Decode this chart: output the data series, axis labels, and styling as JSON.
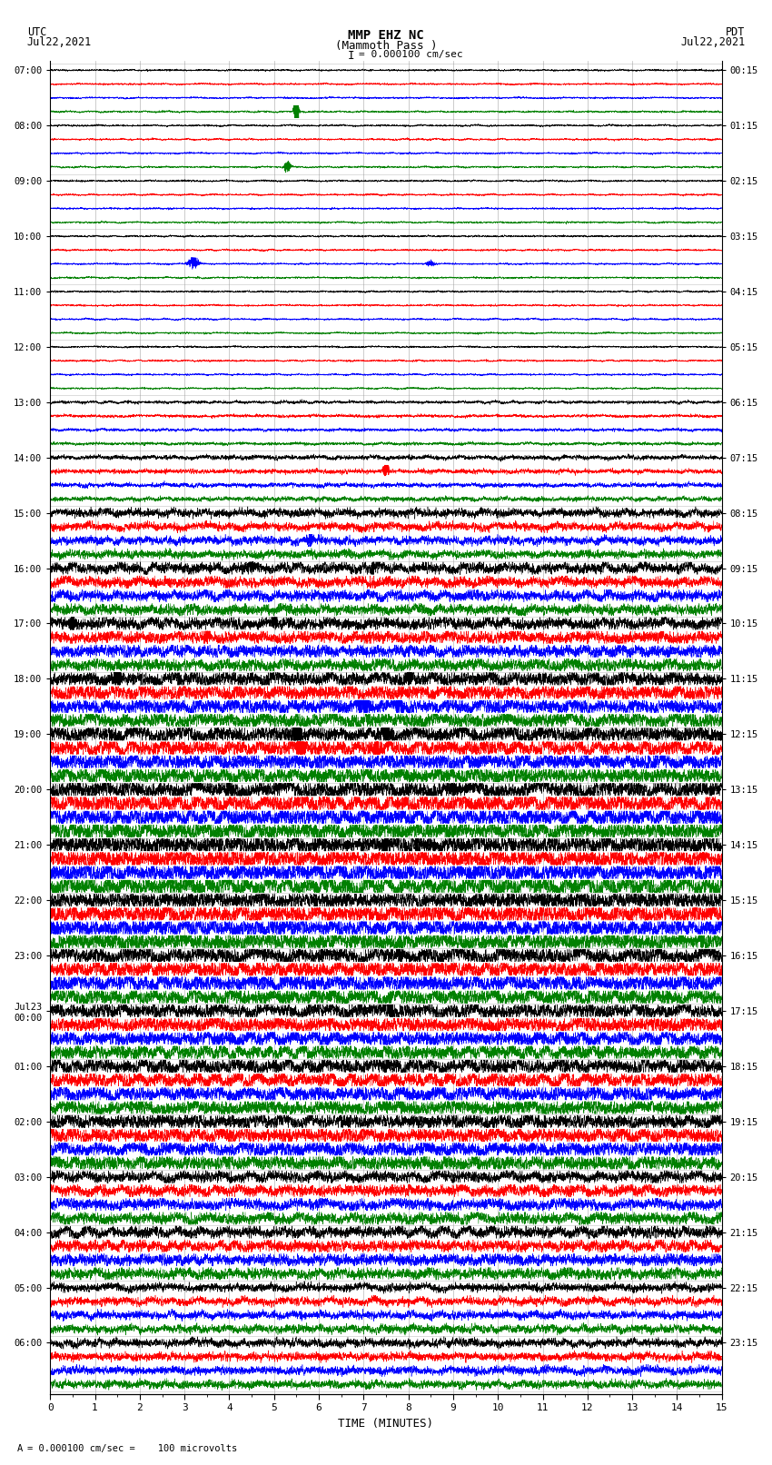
{
  "title_line1": "MMP EHZ NC",
  "title_line2": "(Mammoth Pass )",
  "scale_text": "I = 0.000100 cm/sec",
  "left_label1": "UTC",
  "left_label2": "Jul22,2021",
  "right_label1": "PDT",
  "right_label2": "Jul22,2021",
  "bottom_label": "TIME (MINUTES)",
  "scale_note": "= 0.000100 cm/sec =    100 microvolts",
  "utc_labels": [
    "07:00",
    "08:00",
    "09:00",
    "10:00",
    "11:00",
    "12:00",
    "13:00",
    "14:00",
    "15:00",
    "16:00",
    "17:00",
    "18:00",
    "19:00",
    "20:00",
    "21:00",
    "22:00",
    "23:00",
    "Jul23\n00:00",
    "01:00",
    "02:00",
    "03:00",
    "04:00",
    "05:00",
    "06:00"
  ],
  "pdt_labels": [
    "00:15",
    "01:15",
    "02:15",
    "03:15",
    "04:15",
    "05:15",
    "06:15",
    "07:15",
    "08:15",
    "09:15",
    "10:15",
    "11:15",
    "12:15",
    "13:15",
    "14:15",
    "15:15",
    "16:15",
    "17:15",
    "18:15",
    "19:15",
    "20:15",
    "21:15",
    "22:15",
    "23:15"
  ],
  "trace_colors_cycle": [
    "black",
    "red",
    "blue",
    "green"
  ],
  "num_traces": 96,
  "xmin": 0,
  "xmax": 15,
  "background_color": "white",
  "grid_color": "#999999",
  "seed": 12345
}
